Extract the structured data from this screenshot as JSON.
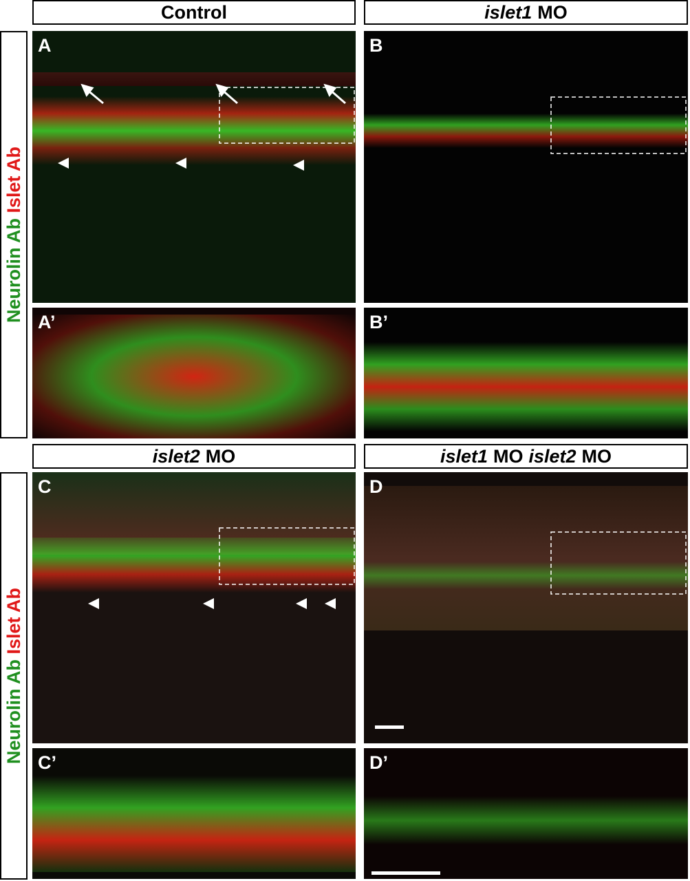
{
  "headers": [
    {
      "parts": [
        {
          "text": "Control",
          "italic": false
        }
      ]
    },
    {
      "parts": [
        {
          "text": "islet1",
          "italic": true
        },
        {
          "text": "MO",
          "italic": false
        }
      ]
    },
    {
      "parts": [
        {
          "text": "islet2",
          "italic": true
        },
        {
          "text": "MO",
          "italic": false
        }
      ]
    },
    {
      "parts": [
        {
          "text": "islet1",
          "italic": true
        },
        {
          "text": "MO",
          "italic": false
        },
        {
          "text": "islet2",
          "italic": true
        },
        {
          "text": "MO",
          "italic": false
        }
      ]
    }
  ],
  "side_labels": [
    {
      "green": "Neurolin Ab",
      "red": "Islet Ab"
    },
    {
      "green": "Neurolin Ab",
      "red": "Islet Ab"
    }
  ],
  "panels": [
    "A",
    "B",
    "A’",
    "B’",
    "C",
    "D",
    "C’",
    "D’"
  ]
}
